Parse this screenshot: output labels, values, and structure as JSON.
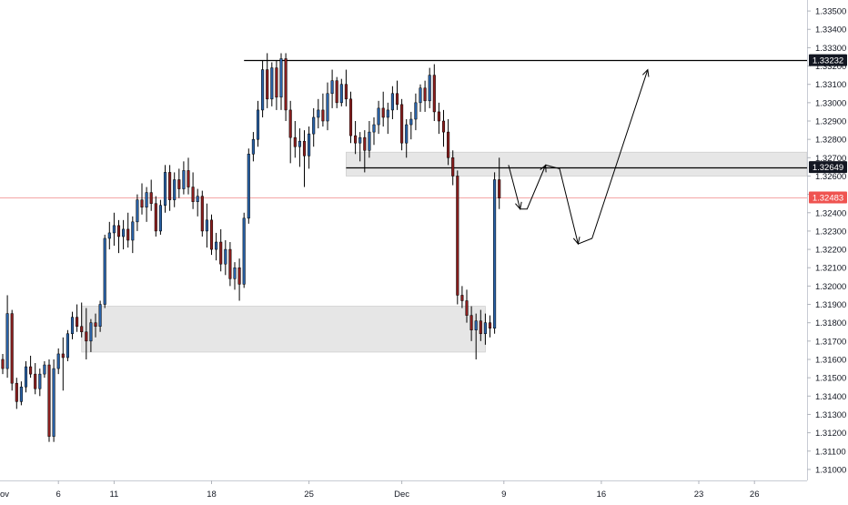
{
  "chart_data": {
    "type": "candlestick",
    "title": "",
    "xlabel": "",
    "ylabel": "",
    "ylim": [
      1.3094,
      1.3356
    ],
    "x_ticks": [
      {
        "label": "ov",
        "idx": -1
      },
      {
        "label": "6",
        "idx": 12
      },
      {
        "label": "11",
        "idx": 24
      },
      {
        "label": "18",
        "idx": 45
      },
      {
        "label": "25",
        "idx": 66
      },
      {
        "label": "Dec",
        "idx": 86
      },
      {
        "label": "9",
        "idx": 108
      },
      {
        "label": "16",
        "idx": 129
      },
      {
        "label": "23",
        "idx": 150
      },
      {
        "label": "26",
        "idx": 162
      }
    ],
    "y_ticks": [
      "1.31000",
      "1.31100",
      "1.31200",
      "1.31300",
      "1.31400",
      "1.31500",
      "1.31600",
      "1.31700",
      "1.31800",
      "1.31900",
      "1.32000",
      "1.32100",
      "1.32200",
      "1.32300",
      "1.32400",
      "1.32500",
      "1.32600",
      "1.32700",
      "1.32800",
      "1.32900",
      "1.33000",
      "1.33100",
      "1.33200",
      "1.33300",
      "1.33400",
      "1.33500"
    ],
    "price_labels": [
      {
        "text": "1.33232",
        "value": 1.33232,
        "color": "#131722"
      },
      {
        "text": "1.32649",
        "value": 1.32649,
        "color": "#131722"
      },
      {
        "text": "1.32483",
        "value": 1.32483,
        "color": "#ef5350"
      }
    ],
    "horizontal_lines": [
      {
        "value": 1.33232,
        "from_idx": 52,
        "color": "#000000"
      },
      {
        "value": 1.32649,
        "from_idx": 74,
        "color": "#000000"
      },
      {
        "value": 1.32483,
        "from_idx": -2,
        "color": "#f4a6a6"
      }
    ],
    "zones": [
      {
        "low": 1.3164,
        "high": 1.3189,
        "from_idx": 17,
        "to_idx": 104
      },
      {
        "low": 1.326,
        "high": 1.3273,
        "from_idx": 74,
        "to_idx": 177
      }
    ],
    "projection_path": [
      {
        "idx": 109,
        "value": 1.3266
      },
      {
        "idx": 111.5,
        "value": 1.3242
      },
      {
        "idx": 113,
        "value": 1.3242
      },
      {
        "idx": 117,
        "value": 1.3266
      },
      {
        "idx": 120,
        "value": 1.3264
      },
      {
        "idx": 124,
        "value": 1.3223
      },
      {
        "idx": 127,
        "value": 1.3226
      },
      {
        "idx": 139,
        "value": 1.3318
      }
    ],
    "up_color": "#2962a8",
    "down_color": "#8b1e1e",
    "candles": [
      [
        1.316,
        1.3163,
        1.3152,
        1.3155
      ],
      [
        1.3155,
        1.3195,
        1.315,
        1.3185
      ],
      [
        1.3185,
        1.3187,
        1.3143,
        1.3147
      ],
      [
        1.3147,
        1.315,
        1.3133,
        1.3137
      ],
      [
        1.3137,
        1.3148,
        1.3135,
        1.3145
      ],
      [
        1.3145,
        1.3159,
        1.3142,
        1.3156
      ],
      [
        1.3156,
        1.3162,
        1.315,
        1.3152
      ],
      [
        1.3152,
        1.3158,
        1.3141,
        1.3144
      ],
      [
        1.3144,
        1.3155,
        1.314,
        1.3152
      ],
      [
        1.3152,
        1.3159,
        1.315,
        1.3157
      ],
      [
        1.3157,
        1.316,
        1.3115,
        1.3118
      ],
      [
        1.3118,
        1.316,
        1.3115,
        1.3155
      ],
      [
        1.3155,
        1.3166,
        1.3152,
        1.3163
      ],
      [
        1.3163,
        1.3172,
        1.3143,
        1.3161
      ],
      [
        1.3161,
        1.3176,
        1.3159,
        1.3174
      ],
      [
        1.3174,
        1.3186,
        1.3171,
        1.3183
      ],
      [
        1.3183,
        1.319,
        1.3175,
        1.3178
      ],
      [
        1.3178,
        1.3191,
        1.3172,
        1.3175
      ],
      [
        1.3175,
        1.3188,
        1.316,
        1.317
      ],
      [
        1.317,
        1.3182,
        1.3164,
        1.318
      ],
      [
        1.318,
        1.3185,
        1.3172,
        1.3178
      ],
      [
        1.3178,
        1.3192,
        1.3175,
        1.319
      ],
      [
        1.319,
        1.3228,
        1.3188,
        1.3226
      ],
      [
        1.3226,
        1.3235,
        1.322,
        1.3229
      ],
      [
        1.3229,
        1.324,
        1.3222,
        1.3233
      ],
      [
        1.3233,
        1.3236,
        1.3218,
        1.3227
      ],
      [
        1.3227,
        1.3236,
        1.322,
        1.3231
      ],
      [
        1.3231,
        1.324,
        1.3221,
        1.3225
      ],
      [
        1.3225,
        1.3238,
        1.3218,
        1.3235
      ],
      [
        1.3235,
        1.325,
        1.323,
        1.3247
      ],
      [
        1.3247,
        1.3256,
        1.3239,
        1.3243
      ],
      [
        1.3243,
        1.3254,
        1.3235,
        1.3251
      ],
      [
        1.3251,
        1.3258,
        1.3241,
        1.3245
      ],
      [
        1.3245,
        1.3249,
        1.3227,
        1.323
      ],
      [
        1.323,
        1.3247,
        1.3228,
        1.3244
      ],
      [
        1.3244,
        1.3266,
        1.324,
        1.3262
      ],
      [
        1.3262,
        1.3266,
        1.3241,
        1.3247
      ],
      [
        1.3247,
        1.3262,
        1.3243,
        1.3258
      ],
      [
        1.3258,
        1.3264,
        1.3248,
        1.3253
      ],
      [
        1.3253,
        1.3268,
        1.325,
        1.3263
      ],
      [
        1.3263,
        1.327,
        1.325,
        1.3254
      ],
      [
        1.3254,
        1.3262,
        1.3242,
        1.3246
      ],
      [
        1.3246,
        1.3253,
        1.3238,
        1.3249
      ],
      [
        1.3249,
        1.3252,
        1.3227,
        1.323
      ],
      [
        1.323,
        1.3245,
        1.3221,
        1.3236
      ],
      [
        1.3236,
        1.3239,
        1.3217,
        1.322
      ],
      [
        1.322,
        1.3229,
        1.3214,
        1.3224
      ],
      [
        1.3224,
        1.3231,
        1.3208,
        1.3212
      ],
      [
        1.3212,
        1.3225,
        1.3206,
        1.322
      ],
      [
        1.322,
        1.3224,
        1.32,
        1.3204
      ],
      [
        1.3204,
        1.3213,
        1.3198,
        1.321
      ],
      [
        1.321,
        1.3215,
        1.3192,
        1.3201
      ],
      [
        1.3201,
        1.324,
        1.3199,
        1.3237
      ],
      [
        1.3237,
        1.3275,
        1.3234,
        1.3272
      ],
      [
        1.3272,
        1.3284,
        1.3268,
        1.328
      ],
      [
        1.328,
        1.3301,
        1.3276,
        1.3296
      ],
      [
        1.3296,
        1.3323,
        1.3292,
        1.3318
      ],
      [
        1.3318,
        1.3327,
        1.3297,
        1.3302
      ],
      [
        1.3302,
        1.3322,
        1.3298,
        1.3319
      ],
      [
        1.3319,
        1.3323,
        1.3296,
        1.3303
      ],
      [
        1.3303,
        1.3327,
        1.3296,
        1.3324
      ],
      [
        1.3324,
        1.3327,
        1.329,
        1.3296
      ],
      [
        1.3296,
        1.3301,
        1.3267,
        1.3281
      ],
      [
        1.3281,
        1.329,
        1.327,
        1.3276
      ],
      [
        1.3276,
        1.3286,
        1.3265,
        1.3279
      ],
      [
        1.3279,
        1.3285,
        1.3254,
        1.3271
      ],
      [
        1.3271,
        1.3287,
        1.3264,
        1.3283
      ],
      [
        1.3283,
        1.3297,
        1.3276,
        1.3292
      ],
      [
        1.3292,
        1.3302,
        1.3286,
        1.3296
      ],
      [
        1.3296,
        1.3305,
        1.3287,
        1.329
      ],
      [
        1.329,
        1.3311,
        1.3285,
        1.3305
      ],
      [
        1.3305,
        1.3318,
        1.3297,
        1.3312
      ],
      [
        1.3312,
        1.3314,
        1.3297,
        1.33
      ],
      [
        1.33,
        1.3313,
        1.3298,
        1.331
      ],
      [
        1.331,
        1.3318,
        1.3298,
        1.3302
      ],
      [
        1.3302,
        1.3306,
        1.3278,
        1.3282
      ],
      [
        1.3282,
        1.329,
        1.3272,
        1.3278
      ],
      [
        1.3278,
        1.3284,
        1.3268,
        1.3281
      ],
      [
        1.3281,
        1.3285,
        1.3262,
        1.3274
      ],
      [
        1.3274,
        1.329,
        1.327,
        1.3284
      ],
      [
        1.3284,
        1.3292,
        1.3277,
        1.3288
      ],
      [
        1.3288,
        1.3301,
        1.3283,
        1.3297
      ],
      [
        1.3297,
        1.3306,
        1.3287,
        1.3292
      ],
      [
        1.3292,
        1.33,
        1.3283,
        1.3296
      ],
      [
        1.3296,
        1.3309,
        1.3291,
        1.3305
      ],
      [
        1.3305,
        1.3312,
        1.3296,
        1.3299
      ],
      [
        1.3299,
        1.3302,
        1.3274,
        1.3278
      ],
      [
        1.3278,
        1.3291,
        1.327,
        1.3288
      ],
      [
        1.3288,
        1.3295,
        1.328,
        1.3291
      ],
      [
        1.3291,
        1.3305,
        1.3285,
        1.33
      ],
      [
        1.33,
        1.331,
        1.3295,
        1.3308
      ],
      [
        1.3308,
        1.3312,
        1.3295,
        1.3301
      ],
      [
        1.3301,
        1.3319,
        1.3297,
        1.3315
      ],
      [
        1.3315,
        1.3321,
        1.329,
        1.3295
      ],
      [
        1.3295,
        1.33,
        1.3283,
        1.329
      ],
      [
        1.329,
        1.3296,
        1.3276,
        1.3284
      ],
      [
        1.3284,
        1.3291,
        1.3266,
        1.327
      ],
      [
        1.327,
        1.3274,
        1.3255,
        1.326
      ],
      [
        1.326,
        1.3263,
        1.319,
        1.3195
      ],
      [
        1.3195,
        1.32,
        1.3188,
        1.3192
      ],
      [
        1.3192,
        1.3198,
        1.318,
        1.3184
      ],
      [
        1.3184,
        1.3189,
        1.317,
        1.3176
      ],
      [
        1.3176,
        1.3185,
        1.316,
        1.3181
      ],
      [
        1.3181,
        1.3187,
        1.317,
        1.3174
      ],
      [
        1.3174,
        1.3185,
        1.3168,
        1.318
      ],
      [
        1.318,
        1.3184,
        1.3172,
        1.3177
      ],
      [
        1.3177,
        1.3262,
        1.3174,
        1.3258
      ],
      [
        1.3258,
        1.327,
        1.3242,
        1.3248
      ]
    ]
  }
}
